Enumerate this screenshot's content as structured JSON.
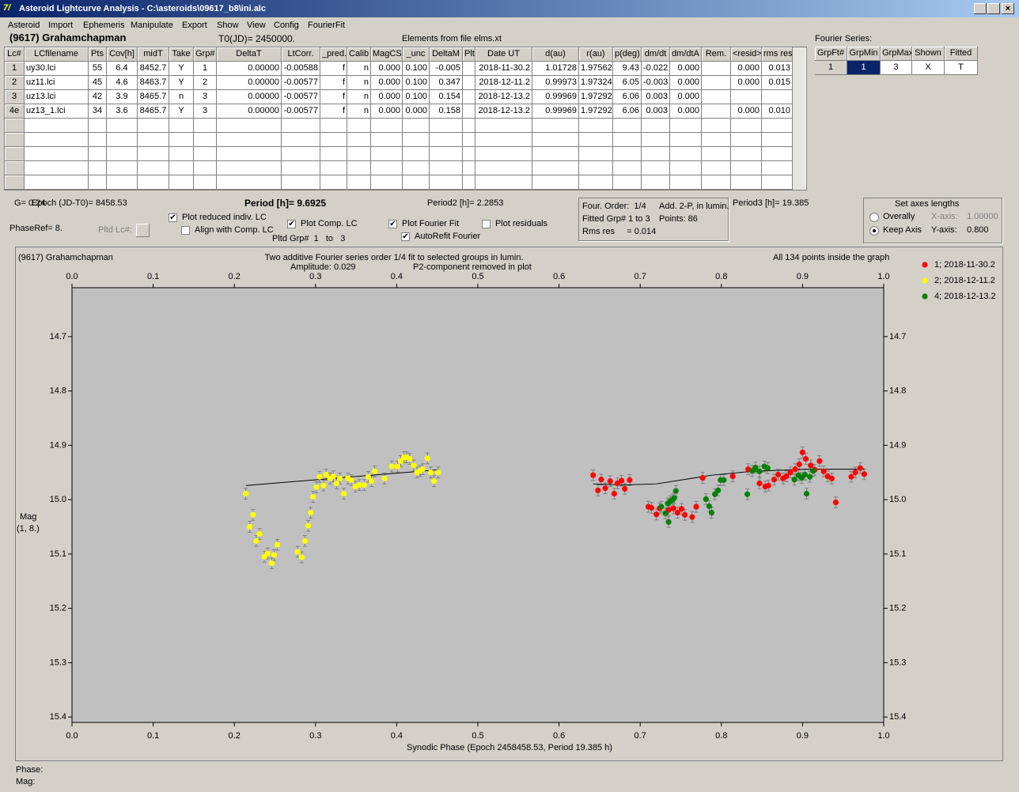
{
  "window": {
    "title": "Asteroid Lightcurve Analysis - C:\\asteroids\\09617_b8\\ini.alc"
  },
  "menu": [
    "Asteroid",
    "Import",
    "Ephemeris",
    "Manipulate",
    "Export",
    "Show",
    "View",
    "Config",
    "FourierFit"
  ],
  "header": {
    "object": "(9617) Grahamchapman",
    "t0": "T0(JD)= 2450000.",
    "elements": "Elements from file elms.xt",
    "fourier_label": "Fourier Series:"
  },
  "table": {
    "columns": [
      "Lc#",
      "LCfilename",
      "Pts",
      "Cov[h]",
      "midT",
      "Take",
      "Grp#",
      "DeltaT",
      "LtCorr.",
      "_pred.",
      "Calib",
      "MagCS",
      "_unc",
      "DeltaM",
      "Plt",
      "Date UT",
      "d(au)",
      "r(au)",
      "p(deg)",
      "dm/dt",
      "dm/dtA",
      "Rem.",
      "<resid>",
      "rms res"
    ],
    "rows": [
      [
        "1",
        "uy30.lci",
        "55",
        "6.4",
        "8452.7",
        "Y",
        "1",
        "0.00000",
        "-0.00588",
        "f",
        "n",
        "0.000",
        "0.100",
        "-0.005",
        null,
        "2018-11-30.2",
        "1.01728",
        "1.97562",
        "9.43",
        "-0.022",
        "0.000",
        null,
        "0.000",
        "0.013"
      ],
      [
        "2",
        "uz11.lci",
        "45",
        "4.6",
        "8463.7",
        "Y",
        "2",
        "0.00000",
        "-0.00577",
        "f",
        "n",
        "0.000",
        "0.100",
        "0.347",
        null,
        "2018-12-11.2",
        "0.99973",
        "1.97324",
        "6.05",
        "-0.003",
        "0.000",
        null,
        "0.000",
        "0.015"
      ],
      [
        "3",
        "uz13.lci",
        "42",
        "3.9",
        "8465.7",
        "n",
        "3",
        "0.00000",
        "-0.00577",
        "f",
        "n",
        "0.000",
        "0.100",
        "0.154",
        null,
        "2018-12-13.2",
        "0.99969",
        "1.97292",
        "6.06",
        "0.003",
        "0.000",
        null,
        null,
        null
      ],
      [
        "4e",
        "uz13_1.lci",
        "34",
        "3.6",
        "8465.7",
        "Y",
        "3",
        "0.00000",
        "-0.00577",
        "f",
        "n",
        "0.000",
        "0.000",
        "0.158",
        null,
        "2018-12-13.2",
        "0.99969",
        "1.97292",
        "6.06",
        "0.003",
        "0.000",
        null,
        "0.000",
        "0.010"
      ]
    ]
  },
  "fourier_table": {
    "columns": [
      "GrpFt#",
      "GrpMin",
      "GrpMax",
      "Shown",
      "Fitted"
    ],
    "rows": [
      [
        "1",
        "1",
        "3",
        "X",
        "T"
      ]
    ]
  },
  "params": {
    "g": "G= 0.24",
    "epoch": "Epoch (JD-T0)= 8458.53",
    "period": "Period [h]= 9.6925",
    "period2": "Period2 [h]= 2.2853",
    "period3": "Period3 [h]= 19.385",
    "phaseref": "PhaseRef= 8.",
    "pltd_lc": "Pltd Lc#:",
    "pltd_grp": "Pltd Grp#  1   to   3"
  },
  "info_box": [
    "Four. Order:  1/4",
    "Add. 2-P, in lumin.",
    "Fitted Grp# 1 to 3",
    "Points: 86",
    "Rms res     = 0.014"
  ],
  "axes_box": {
    "title": "Set axes lengths",
    "radios": [
      {
        "label": "Overally",
        "checked": false
      },
      {
        "label": "Keep Axis",
        "checked": true
      }
    ],
    "x_label": "X-axis:",
    "x_value": "1.00000",
    "y_label": "Y-axis:",
    "y_value": "0.800"
  },
  "checkboxes": [
    {
      "label": "Plot reduced indiv. LC",
      "checked": true
    },
    {
      "label": "Align with Comp. LC",
      "checked": false
    },
    {
      "label": "Plot Comp. LC",
      "checked": true
    },
    {
      "label": "Plot Fourier Fit",
      "checked": true
    },
    {
      "label": "AutoRefit Fourier",
      "checked": true
    },
    {
      "label": "Plot residuals",
      "checked": false
    }
  ],
  "chart_data": {
    "type": "scatter",
    "title": "(9617) Grahamchapman",
    "subtitle": "Two additive Fourier series order 1/4 fit to selected groups in lumin.",
    "annotations": [
      "Amplitude: 0.029",
      "P2-component removed in plot",
      "All 134 points inside the graph"
    ],
    "x_label": "Synodic Phase (Epoch 2458458.53, Period 19.385 h)",
    "y_label": [
      "Mag",
      "(1, 8.)"
    ],
    "xlim": [
      0,
      1
    ],
    "ylim": [
      14.61,
      15.41
    ],
    "y_inverted": true,
    "legend": "top-right",
    "xticks": [
      {
        "value": 0,
        "label": "0.0"
      },
      0.1,
      0.2,
      0.3,
      0.4,
      0.5,
      0.6,
      0.7,
      0.8,
      0.9,
      {
        "value": 1,
        "label": "1.0"
      }
    ],
    "yticks": [
      14.7,
      14.8,
      14.9,
      {
        "value": 15,
        "label": "15.0"
      },
      15.1,
      15.2,
      15.3,
      15.4
    ],
    "series": [
      {
        "name": "1; 2018-11-30.2",
        "color": "#ff0000",
        "error": 0.01,
        "x": [
          0.642,
          0.648,
          0.652,
          0.657,
          0.663,
          0.668,
          0.672,
          0.677,
          0.681,
          0.687,
          0.71,
          0.714,
          0.72,
          0.724,
          0.735,
          0.741,
          0.746,
          0.751,
          0.755,
          0.764,
          0.769,
          0.777,
          0.814,
          0.833,
          0.847,
          0.854,
          0.858,
          0.865,
          0.87,
          0.876,
          0.88,
          0.885,
          0.891,
          0.896,
          0.9,
          0.904,
          0.91,
          0.915,
          0.921,
          0.926,
          0.931,
          0.936,
          0.941,
          0.96,
          0.965,
          0.971,
          0.976
        ],
        "values": [
          14.955,
          14.983,
          14.963,
          14.979,
          14.966,
          14.989,
          14.97,
          14.965,
          14.98,
          14.964,
          15.013,
          15.015,
          15.027,
          15.016,
          15.019,
          15.016,
          15.024,
          15.017,
          15.028,
          15.032,
          15.013,
          14.96,
          14.957,
          14.944,
          14.97,
          14.976,
          14.974,
          14.963,
          14.954,
          14.961,
          14.957,
          14.95,
          14.944,
          14.935,
          14.913,
          14.925,
          14.937,
          14.945,
          14.929,
          14.948,
          14.957,
          14.961,
          15.005,
          14.958,
          14.95,
          14.942,
          14.953
        ]
      },
      {
        "name": "2; 2018-12-11.2",
        "color": "#ffff00",
        "error": 0.01,
        "x": [
          0.214,
          0.219,
          0.223,
          0.227,
          0.231,
          0.237,
          0.241,
          0.246,
          0.249,
          0.253,
          0.278,
          0.283,
          0.287,
          0.291,
          0.294,
          0.297,
          0.301,
          0.305,
          0.31,
          0.313,
          0.318,
          0.322,
          0.326,
          0.33,
          0.335,
          0.34,
          0.344,
          0.349,
          0.354,
          0.36,
          0.365,
          0.369,
          0.373,
          0.385,
          0.394,
          0.401,
          0.405,
          0.409,
          0.412,
          0.416,
          0.421,
          0.425,
          0.429,
          0.432,
          0.438,
          0.442,
          0.446,
          0.451
        ],
        "values": [
          14.989,
          15.05,
          15.028,
          15.076,
          15.063,
          15.105,
          15.099,
          15.117,
          15.102,
          15.083,
          15.096,
          15.106,
          15.076,
          15.048,
          15.024,
          14.995,
          14.977,
          14.958,
          14.974,
          14.954,
          14.961,
          14.957,
          14.97,
          14.961,
          14.989,
          14.961,
          14.964,
          14.976,
          14.973,
          14.973,
          14.958,
          14.966,
          14.948,
          14.961,
          14.939,
          14.939,
          14.929,
          14.922,
          14.922,
          14.925,
          14.937,
          14.95,
          14.947,
          14.944,
          14.924,
          14.95,
          14.966,
          14.95
        ]
      },
      {
        "name": "4; 2018-12-13.2",
        "color": "#008000",
        "error": 0.01,
        "x": [
          0.726,
          0.731,
          0.734,
          0.735,
          0.737,
          0.74,
          0.742,
          0.744,
          0.781,
          0.785,
          0.788,
          0.792,
          0.796,
          0.799,
          0.803,
          0.832,
          0.838,
          0.842,
          0.847,
          0.853,
          0.857,
          0.89,
          0.895,
          0.899,
          0.903,
          0.905,
          0.909,
          0.913
        ],
        "values": [
          15.013,
          15.025,
          15.007,
          15.041,
          15.003,
          15.0,
          14.997,
          14.984,
          14.999,
          15.012,
          15.024,
          14.99,
          14.983,
          14.964,
          14.964,
          14.99,
          14.947,
          14.941,
          14.948,
          14.939,
          14.942,
          14.963,
          14.955,
          14.96,
          14.954,
          14.989,
          14.958,
          14.947
        ]
      }
    ],
    "fit": {
      "color": "#000000",
      "x": [
        0.2144,
        0.451,
        0.55,
        0.642,
        0.676,
        0.72,
        0.788,
        0.837,
        0.905,
        0.976
      ],
      "values": [
        14.974,
        14.945,
        null,
        14.971,
        14.973,
        14.971,
        14.955,
        14.948,
        14.944,
        14.944
      ]
    }
  },
  "status": {
    "phase": "Phase:",
    "mag": "Mag:"
  }
}
